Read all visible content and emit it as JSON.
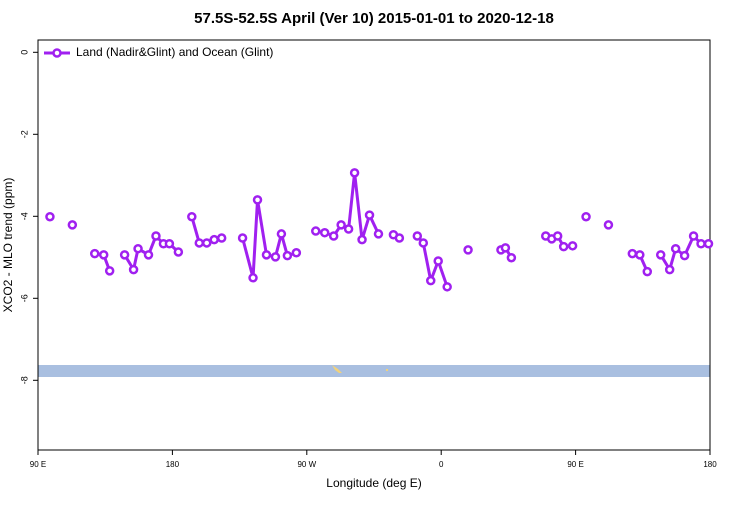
{
  "chart_data": {
    "type": "line",
    "title": "57.5S-52.5S April (Ver 10)   2015-01-01 to 2020-12-18",
    "xlabel": "Longitude (deg E)",
    "ylabel": "XCO2 - MLO trend (ppm)",
    "xlim": [
      90,
      540
    ],
    "xticks": [
      {
        "value": 90,
        "label": "90 E"
      },
      180,
      {
        "value": 270,
        "label": "90 W"
      },
      {
        "value": 360,
        "label": "0"
      },
      {
        "value": 450,
        "label": "90 E"
      },
      {
        "value": 540,
        "label": "180"
      }
    ],
    "ylim": [
      -9.7,
      0.3
    ],
    "yticks": [
      0,
      -2,
      -4,
      -6,
      -8
    ],
    "legend": "top-left",
    "x": [
      98,
      null,
      113,
      null,
      128,
      134,
      138,
      null,
      148,
      154,
      157,
      164,
      169,
      174,
      178,
      184,
      null,
      193,
      198,
      203,
      208,
      213,
      null,
      227,
      234,
      237,
      243,
      249,
      253,
      257,
      263,
      null,
      276,
      282,
      288,
      293,
      298,
      302,
      307,
      312,
      318,
      null,
      328,
      332,
      null,
      344,
      348,
      353,
      358,
      364,
      null,
      378,
      null,
      400,
      403,
      407,
      null,
      430,
      434,
      438,
      442,
      448,
      null,
      457,
      null,
      472,
      null,
      488,
      493,
      498,
      null,
      507,
      513,
      517,
      523,
      529,
      534,
      539
    ],
    "series": [
      {
        "name": "Land (Nadir&Glint) and Ocean (Glint)",
        "color": "#a020f0",
        "values": [
          -4.01,
          null,
          -4.21,
          null,
          -4.91,
          -4.94,
          -5.33,
          null,
          -4.94,
          -5.3,
          -4.79,
          -4.94,
          -4.48,
          -4.67,
          -4.67,
          -4.87,
          null,
          -4.01,
          -4.65,
          -4.65,
          -4.57,
          -4.53,
          null,
          -4.53,
          -5.5,
          -3.6,
          -4.94,
          -4.99,
          -4.43,
          -4.96,
          -4.89,
          null,
          -4.36,
          -4.4,
          -4.48,
          -4.21,
          -4.31,
          -2.94,
          -4.57,
          -3.97,
          -4.43,
          null,
          -4.45,
          -4.53,
          null,
          -4.48,
          -4.65,
          -5.57,
          -5.09,
          -5.72,
          null,
          -4.82,
          null,
          -4.82,
          -4.77,
          -5.01,
          null,
          -4.48,
          -4.55,
          -4.48,
          -4.74,
          -4.72,
          null,
          -4.01,
          null,
          -4.21,
          null,
          -4.91,
          -4.94,
          -5.35,
          null,
          -4.94,
          -5.3,
          -4.79,
          -4.96,
          -4.48,
          -4.67,
          -4.67
        ]
      }
    ]
  }
}
